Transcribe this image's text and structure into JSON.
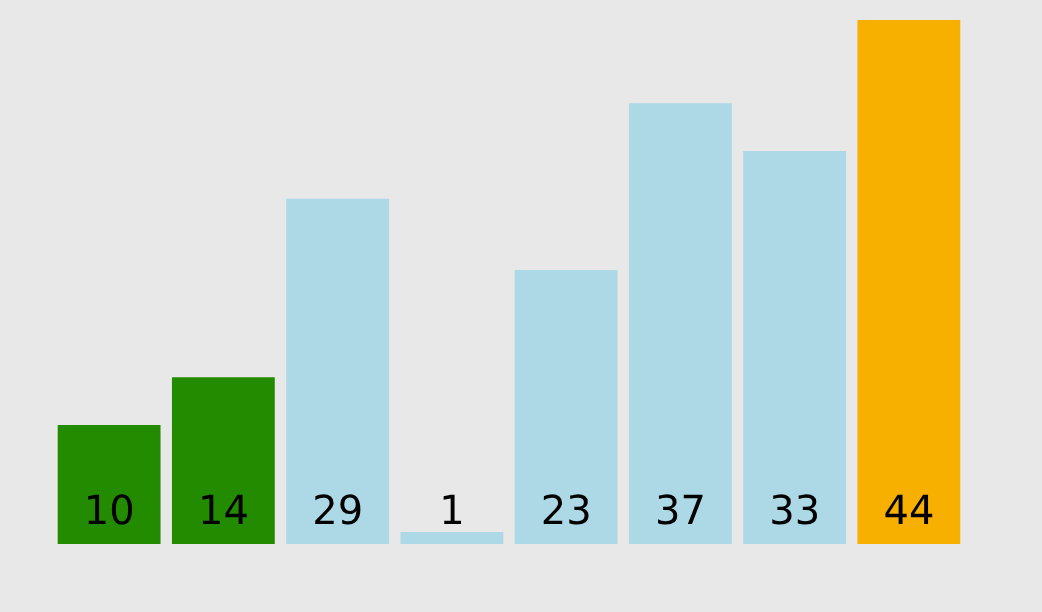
{
  "chart_data": {
    "type": "bar",
    "categories": [
      null,
      null,
      null,
      null,
      null,
      null,
      null,
      null
    ],
    "values": [
      10,
      14,
      29,
      1,
      23,
      37,
      33,
      44
    ],
    "colors": [
      "#228b00",
      "#228b00",
      "#add8e6",
      "#add8e6",
      "#add8e6",
      "#add8e6",
      "#add8e6",
      "#f8b000"
    ],
    "data_labels": true
  }
}
